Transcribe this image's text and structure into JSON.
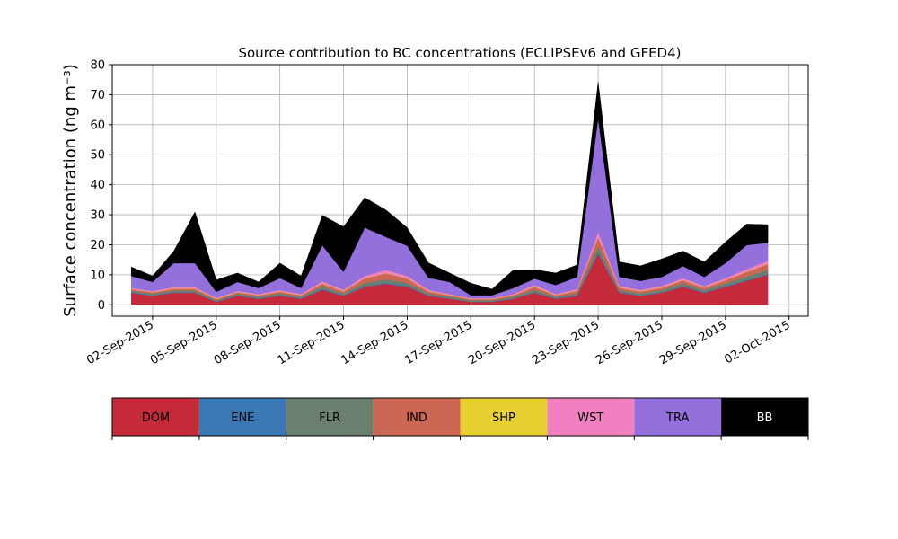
{
  "chart_data": {
    "type": "area",
    "title": "Source contribution to BC concentrations (ECLIPSEv6 and GFED4)",
    "ylabel": "Surface concentration (ng m⁻³)",
    "xlabel": "",
    "ylim": [
      0,
      80
    ],
    "xlim": [
      "2015-09-01",
      "2015-10-02"
    ],
    "y_ticks": [
      0,
      10,
      20,
      30,
      40,
      50,
      60,
      70,
      80
    ],
    "x_ticks": [
      {
        "date": "2015-09-02",
        "label": "02-Sep-2015"
      },
      {
        "date": "2015-09-05",
        "label": "05-Sep-2015"
      },
      {
        "date": "2015-09-08",
        "label": "08-Sep-2015"
      },
      {
        "date": "2015-09-11",
        "label": "11-Sep-2015"
      },
      {
        "date": "2015-09-14",
        "label": "14-Sep-2015"
      },
      {
        "date": "2015-09-17",
        "label": "17-Sep-2015"
      },
      {
        "date": "2015-09-20",
        "label": "20-Sep-2015"
      },
      {
        "date": "2015-09-23",
        "label": "23-Sep-2015"
      },
      {
        "date": "2015-09-26",
        "label": "26-Sep-2015"
      },
      {
        "date": "2015-09-29",
        "label": "29-Sep-2015"
      },
      {
        "date": "2015-10-02",
        "label": "02-Oct-2015"
      }
    ],
    "grid": true,
    "stacked": true,
    "x": [
      "2015-09-01",
      "2015-09-02",
      "2015-09-03",
      "2015-09-04",
      "2015-09-05",
      "2015-09-06",
      "2015-09-07",
      "2015-09-08",
      "2015-09-09",
      "2015-09-10",
      "2015-09-11",
      "2015-09-12",
      "2015-09-13",
      "2015-09-14",
      "2015-09-15",
      "2015-09-16",
      "2015-09-17",
      "2015-09-18",
      "2015-09-19",
      "2015-09-20",
      "2015-09-21",
      "2015-09-22",
      "2015-09-23",
      "2015-09-24",
      "2015-09-25",
      "2015-09-26",
      "2015-09-27",
      "2015-09-28",
      "2015-09-29",
      "2015-09-30",
      "2015-10-01"
    ],
    "series": [
      {
        "name": "DOM",
        "color": "#c52a3a",
        "values": [
          4,
          3,
          4,
          4,
          1,
          3,
          2,
          3,
          2,
          5,
          3,
          6,
          7,
          6,
          3,
          2,
          1,
          1,
          2,
          4,
          2,
          3,
          17,
          4,
          3,
          4,
          6,
          4,
          6,
          8,
          10
        ]
      },
      {
        "name": "ENE",
        "color": "#3a78b5",
        "values": [
          0.2,
          0.2,
          0.2,
          0.2,
          0.1,
          0.2,
          0.2,
          0.2,
          0.2,
          0.3,
          0.2,
          0.3,
          0.3,
          0.3,
          0.2,
          0.2,
          0.1,
          0.1,
          0.2,
          0.2,
          0.2,
          0.2,
          0.5,
          0.2,
          0.2,
          0.2,
          0.3,
          0.2,
          0.3,
          0.3,
          0.3
        ]
      },
      {
        "name": "FLR",
        "color": "#6b7f6f",
        "values": [
          0.5,
          0.5,
          0.6,
          0.6,
          0.4,
          0.5,
          0.5,
          0.6,
          0.5,
          0.8,
          0.6,
          1,
          1.2,
          1,
          0.6,
          0.5,
          0.4,
          0.4,
          0.5,
          0.8,
          0.5,
          0.7,
          2,
          0.7,
          0.6,
          0.7,
          0.9,
          0.7,
          0.9,
          1.2,
          1.3
        ]
      },
      {
        "name": "IND",
        "color": "#cc6655",
        "values": [
          0.5,
          0.5,
          0.6,
          0.6,
          0.4,
          0.5,
          0.5,
          0.6,
          0.5,
          1,
          0.7,
          1.5,
          2,
          1.5,
          0.7,
          0.5,
          0.4,
          0.4,
          0.5,
          1,
          0.5,
          0.8,
          3,
          0.8,
          0.7,
          0.8,
          1,
          0.8,
          1,
          1.5,
          2
        ]
      },
      {
        "name": "SHP",
        "color": "#e8d030",
        "values": [
          0.1,
          0.1,
          0.1,
          0.1,
          0.1,
          0.1,
          0.1,
          0.1,
          0.1,
          0.1,
          0.1,
          0.1,
          0.1,
          0.1,
          0.1,
          0.1,
          0.1,
          0.1,
          0.1,
          0.1,
          0.1,
          0.1,
          0.2,
          0.1,
          0.1,
          0.1,
          0.1,
          0.1,
          0.1,
          0.1,
          0.1
        ]
      },
      {
        "name": "WST",
        "color": "#f080c0",
        "values": [
          0.3,
          0.3,
          0.4,
          0.4,
          0.3,
          0.3,
          0.3,
          0.4,
          0.3,
          0.6,
          0.4,
          0.8,
          1,
          0.8,
          0.4,
          0.3,
          0.2,
          0.2,
          0.3,
          0.6,
          0.3,
          0.5,
          1.5,
          0.5,
          0.4,
          0.5,
          0.6,
          0.5,
          0.6,
          0.8,
          1
        ]
      },
      {
        "name": "TRA",
        "color": "#9370db",
        "values": [
          4,
          3,
          8,
          8,
          2,
          3,
          2,
          4,
          2,
          12,
          6,
          16,
          11,
          10,
          4,
          4,
          1,
          1,
          2,
          2,
          3,
          4,
          38,
          3,
          3,
          3,
          4,
          3,
          5,
          8,
          6
        ]
      },
      {
        "name": "BB",
        "color": "#000000",
        "values": [
          3,
          2,
          4,
          17,
          4,
          3,
          2,
          5,
          4,
          10,
          15,
          10,
          9,
          6,
          5,
          3,
          4,
          2,
          6,
          3,
          4,
          4,
          12,
          5,
          5,
          6,
          5,
          5,
          7,
          7,
          6
        ]
      }
    ],
    "legend_position": "bottom-colorbar",
    "legend": [
      "DOM",
      "ENE",
      "FLR",
      "IND",
      "SHP",
      "WST",
      "TRA",
      "BB"
    ]
  }
}
